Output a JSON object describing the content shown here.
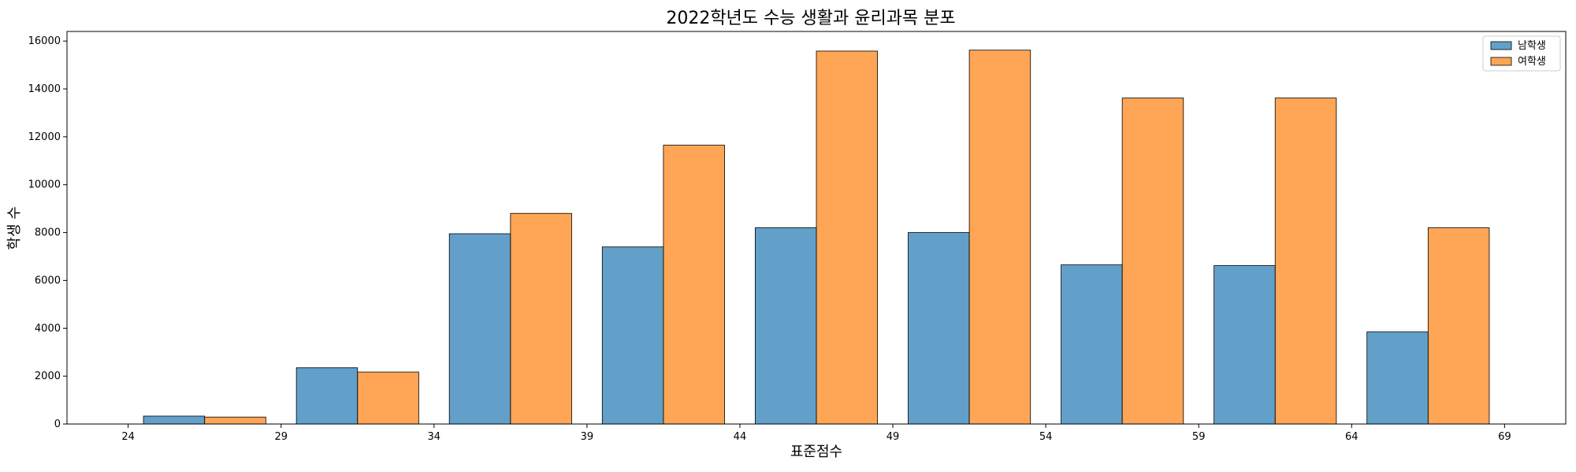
{
  "chart_data": {
    "type": "bar",
    "title": "2022학년도 수능 생활과 윤리과목 분포",
    "xlabel": "표준점수",
    "ylabel": "학생 수",
    "xlim": [
      22,
      71
    ],
    "ylim": [
      0,
      16400
    ],
    "x_ticks": [
      24,
      29,
      34,
      39,
      44,
      49,
      54,
      59,
      64,
      69
    ],
    "y_ticks": [
      0,
      2000,
      4000,
      6000,
      8000,
      10000,
      12000,
      14000,
      16000
    ],
    "bin_edges": [
      24,
      29,
      34,
      39,
      44,
      49,
      54,
      59,
      64,
      69
    ],
    "legend_position": "top-right",
    "grid": false,
    "series": [
      {
        "name": "남학생",
        "color": "#1f77b4",
        "values": [
          330,
          2350,
          7950,
          7400,
          8200,
          8000,
          6650,
          6620,
          3850
        ]
      },
      {
        "name": "여학생",
        "color": "#ff7f0e",
        "values": [
          290,
          2170,
          8800,
          11650,
          15580,
          15620,
          13620,
          13620,
          8200
        ]
      }
    ]
  }
}
